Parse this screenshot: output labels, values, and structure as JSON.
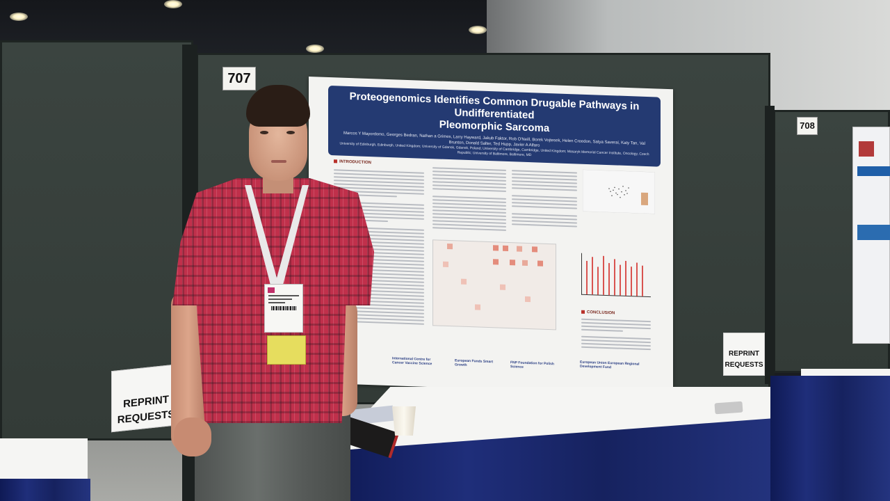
{
  "scene": {
    "booth_left_number": "707",
    "booth_right_number": "708"
  },
  "poster": {
    "title_line1": "Proteogenomics Identifies Common Drugable Pathways in Undifferentiated",
    "title_line2": "Pleomorphic Sarcoma",
    "authors": "Marcos Y Mayordomo, Georges Bedran, Nathan a Grimes, Larry Hayward, Jakub Faktor, Rob O'Neill, Borek Vojtesek, Helen Creedon, Satya Saverai, Katy Tan, Val Brunton, Donald Salter, Ted Hupp, Javier A Alfaro",
    "affiliations": "University of Edinburgh, Edinburgh, United Kingdom; University of Gdansk, Gdansk, Poland; University of Cambridge, Cambridge, United Kingdom; Masaryk Memorial Cancer Institute, Oncology, Czech Republic; University of Baltimore, Baltimore, MD",
    "section_intro": "INTRODUCTION",
    "section_conclusion": "CONCLUSION",
    "logos": [
      "International Centre for Cancer Vaccine Science",
      "European Funds Smart Growth",
      "FNP Foundation for Polish Science",
      "European Union European Regional Development Fund"
    ]
  },
  "signs": {
    "left_line1": "REPRINT",
    "left_line2": "REQUESTS",
    "right_line1": "REPRINT",
    "right_line2": "REQUESTS"
  },
  "colors": {
    "poster_title_bar": "#243a72",
    "table_skirt": "#1a2766",
    "shirt": "#c0304b",
    "panel": "#3b4440"
  }
}
